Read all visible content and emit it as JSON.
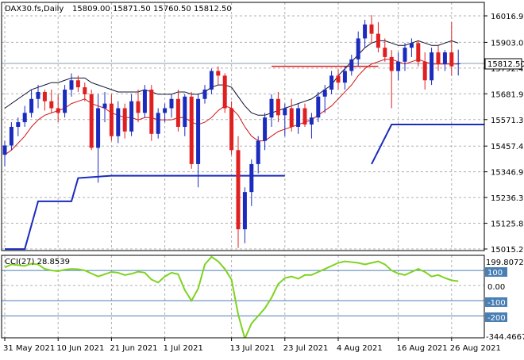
{
  "header": {
    "symbol": "DAX30.fs,Daily",
    "ohlc": [
      "15809.00",
      "15871.50",
      "15760.50",
      "15812.50"
    ]
  },
  "price_tag": "15812.50",
  "cci": {
    "label": "CCI(27) 28.8539",
    "top_value": "199.8072",
    "bottom_value": "-344.4667",
    "levels": [
      "100",
      "0.00",
      "-100",
      "-200"
    ]
  },
  "chart_data": {
    "type": "candlestick",
    "title": "DAX30.fs,Daily",
    "date_labels": [
      "31 May 2021",
      "10 Jun 2021",
      "21 Jun 2021",
      "1 Jul 2021",
      "13 Jul 2021",
      "23 Jul 2021",
      "4 Aug 2021",
      "16 Aug 2021",
      "26 Aug 2021"
    ],
    "price_ticks": [
      "16016.90",
      "15903.00",
      "15792.45",
      "15681.90",
      "15571.35",
      "15457.45",
      "15346.90",
      "15236.35",
      "15125.80",
      "15015.25"
    ],
    "ylim": [
      15015.25,
      16016.9
    ],
    "candles": [
      [
        15420,
        15480,
        15370,
        15460
      ],
      [
        15460,
        15560,
        15440,
        15540
      ],
      [
        15540,
        15580,
        15500,
        15560
      ],
      [
        15560,
        15630,
        15540,
        15600
      ],
      [
        15600,
        15700,
        15580,
        15660
      ],
      [
        15660,
        15720,
        15620,
        15690
      ],
      [
        15690,
        15700,
        15610,
        15650
      ],
      [
        15650,
        15700,
        15600,
        15620
      ],
      [
        15620,
        15680,
        15560,
        15600
      ],
      [
        15600,
        15720,
        15580,
        15700
      ],
      [
        15700,
        15770,
        15670,
        15740
      ],
      [
        15740,
        15760,
        15690,
        15710
      ],
      [
        15710,
        15730,
        15650,
        15680
      ],
      [
        15680,
        15700,
        15440,
        15450
      ],
      [
        15450,
        15680,
        15300,
        15620
      ],
      [
        15620,
        15690,
        15560,
        15640
      ],
      [
        15640,
        15680,
        15480,
        15500
      ],
      [
        15500,
        15650,
        15470,
        15620
      ],
      [
        15620,
        15640,
        15490,
        15520
      ],
      [
        15520,
        15680,
        15500,
        15650
      ],
      [
        15650,
        15700,
        15560,
        15600
      ],
      [
        15600,
        15720,
        15580,
        15700
      ],
      [
        15700,
        15720,
        15480,
        15510
      ],
      [
        15510,
        15620,
        15490,
        15600
      ],
      [
        15600,
        15640,
        15560,
        15620
      ],
      [
        15620,
        15680,
        15580,
        15660
      ],
      [
        15660,
        15700,
        15520,
        15540
      ],
      [
        15540,
        15680,
        15500,
        15670
      ],
      [
        15670,
        15690,
        15360,
        15380
      ],
      [
        15380,
        15680,
        15280,
        15660
      ],
      [
        15660,
        15720,
        15640,
        15700
      ],
      [
        15700,
        15790,
        15680,
        15780
      ],
      [
        15780,
        15800,
        15720,
        15760
      ],
      [
        15760,
        15770,
        15600,
        15620
      ],
      [
        15620,
        15650,
        15420,
        15440
      ],
      [
        15440,
        15500,
        15020,
        15100
      ],
      [
        15100,
        15280,
        15040,
        15260
      ],
      [
        15260,
        15400,
        15200,
        15380
      ],
      [
        15380,
        15500,
        15340,
        15480
      ],
      [
        15480,
        15600,
        15440,
        15580
      ],
      [
        15580,
        15680,
        15540,
        15660
      ],
      [
        15660,
        15690,
        15560,
        15590
      ],
      [
        15590,
        15640,
        15500,
        15620
      ],
      [
        15620,
        15660,
        15520,
        15540
      ],
      [
        15540,
        15640,
        15510,
        15620
      ],
      [
        15620,
        15640,
        15540,
        15550
      ],
      [
        15550,
        15600,
        15490,
        15580
      ],
      [
        15580,
        15690,
        15560,
        15670
      ],
      [
        15670,
        15720,
        15600,
        15700
      ],
      [
        15700,
        15780,
        15680,
        15760
      ],
      [
        15760,
        15790,
        15700,
        15730
      ],
      [
        15730,
        15800,
        15700,
        15780
      ],
      [
        15780,
        15850,
        15760,
        15830
      ],
      [
        15830,
        15950,
        15800,
        15920
      ],
      [
        15920,
        16000,
        15880,
        15980
      ],
      [
        15980,
        16020,
        15900,
        15940
      ],
      [
        15940,
        15990,
        15860,
        15880
      ],
      [
        15880,
        15920,
        15820,
        15840
      ],
      [
        15840,
        15870,
        15620,
        15780
      ],
      [
        15780,
        15860,
        15740,
        15820
      ],
      [
        15820,
        15900,
        15780,
        15880
      ],
      [
        15880,
        15920,
        15840,
        15900
      ],
      [
        15900,
        15910,
        15800,
        15820
      ],
      [
        15820,
        15860,
        15700,
        15740
      ],
      [
        15740,
        15880,
        15720,
        15860
      ],
      [
        15860,
        15890,
        15780,
        15810
      ],
      [
        15810,
        15870,
        15780,
        15860
      ],
      [
        15860,
        15990,
        15760,
        15800
      ],
      [
        15809,
        15871.5,
        15760.5,
        15812.5
      ]
    ],
    "series": [
      {
        "values": [
          15420,
          15440,
          15470,
          15500,
          15540,
          15570,
          15590,
          15600,
          15610,
          15620,
          15640,
          15650,
          15660,
          15640,
          15630,
          15620,
          15600,
          15590,
          15580,
          15580,
          15570,
          15580,
          15580,
          15570,
          15570,
          15570,
          15580,
          15580,
          15560,
          15550,
          15560,
          15580,
          15610,
          15630,
          15620,
          15590,
          15540,
          15500,
          15480,
          15480,
          15500,
          15520,
          15530,
          15540,
          15550,
          15560,
          15570,
          15590,
          15610,
          15630,
          15660,
          15690,
          15720,
          15760,
          15790,
          15810,
          15820,
          15830,
          15830,
          15820,
          15810,
          15820,
          15830,
          15820,
          15810,
          15810,
          15810,
          15810,
          15810
        ]
      },
      {
        "values": [
          15620,
          15640,
          15660,
          15680,
          15700,
          15710,
          15720,
          15730,
          15730,
          15740,
          15750,
          15750,
          15750,
          15730,
          15720,
          15710,
          15700,
          15690,
          15690,
          15690,
          15690,
          15700,
          15690,
          15680,
          15680,
          15680,
          15690,
          15690,
          15680,
          15680,
          15690,
          15710,
          15720,
          15720,
          15710,
          15670,
          15630,
          15600,
          15590,
          15590,
          15600,
          15610,
          15620,
          15630,
          15640,
          15650,
          15660,
          15680,
          15700,
          15720,
          15760,
          15790,
          15820,
          15850,
          15880,
          15900,
          15910,
          15910,
          15900,
          15890,
          15890,
          15900,
          15910,
          15900,
          15890,
          15890,
          15900,
          15910,
          15900
        ]
      }
    ],
    "support_steps": [
      [
        0,
        15015
      ],
      [
        3,
        15015
      ],
      [
        5,
        15220
      ],
      [
        10,
        15220
      ],
      [
        11,
        15320
      ],
      [
        16,
        15330
      ],
      [
        42,
        15330
      ]
    ],
    "red_level": {
      "from": 40,
      "to": 56,
      "value": 15800
    },
    "blue_level": {
      "from": 58,
      "to": 75,
      "value": 15550
    },
    "cci_values": [
      120,
      140,
      135,
      130,
      145,
      140,
      110,
      100,
      95,
      105,
      110,
      108,
      100,
      80,
      60,
      75,
      90,
      85,
      70,
      78,
      92,
      85,
      40,
      20,
      60,
      85,
      75,
      -30,
      -100,
      -20,
      140,
      190,
      160,
      110,
      40,
      -190,
      -350,
      -250,
      -200,
      -150,
      -80,
      10,
      50,
      60,
      45,
      70,
      70,
      90,
      110,
      130,
      150,
      160,
      155,
      150,
      140,
      150,
      160,
      140,
      100,
      80,
      70,
      90,
      110,
      90,
      60,
      70,
      50,
      35,
      29
    ]
  }
}
